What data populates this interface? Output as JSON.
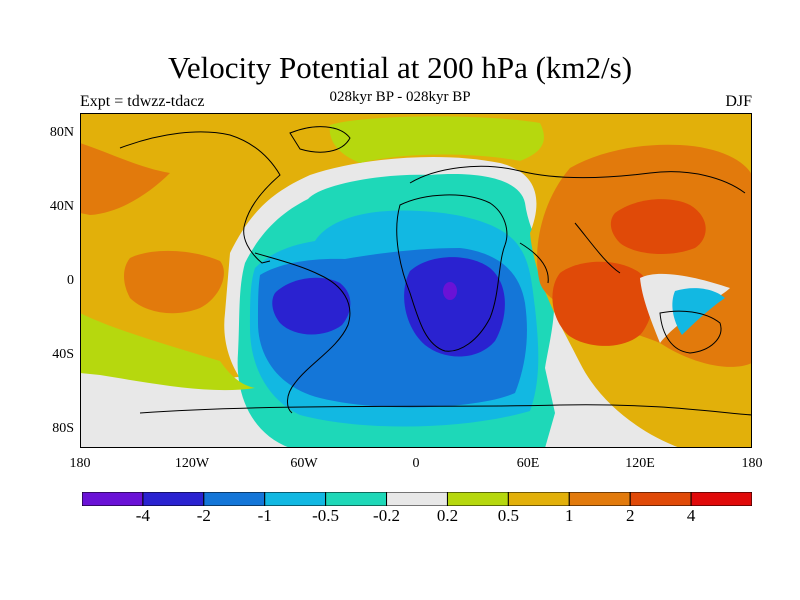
{
  "header": {
    "title": "Velocity Potential at 200 hPa (km2/s)",
    "subtitle": "028kyr BP - 028kyr BP",
    "expt": "Expt = tdwzz-tdacz",
    "season": "DJF"
  },
  "axes": {
    "y_ticks": [
      "80N",
      "40N",
      "0",
      "40S",
      "80S"
    ],
    "x_ticks": [
      "180",
      "120W",
      "60W",
      "0",
      "60E",
      "120E",
      "180"
    ]
  },
  "colorbar": {
    "colors": [
      "#6a12d6",
      "#2a22d0",
      "#1476d8",
      "#12b8e2",
      "#1ed8b8",
      "#e8e8e8",
      "#b6d80e",
      "#e2b00a",
      "#e27a0c",
      "#e04a08",
      "#e00a0a"
    ],
    "labels": [
      "-4",
      "-2",
      "-1",
      "-0.5",
      "-0.2",
      "0.2",
      "0.5",
      "1",
      "2",
      "4"
    ]
  }
}
